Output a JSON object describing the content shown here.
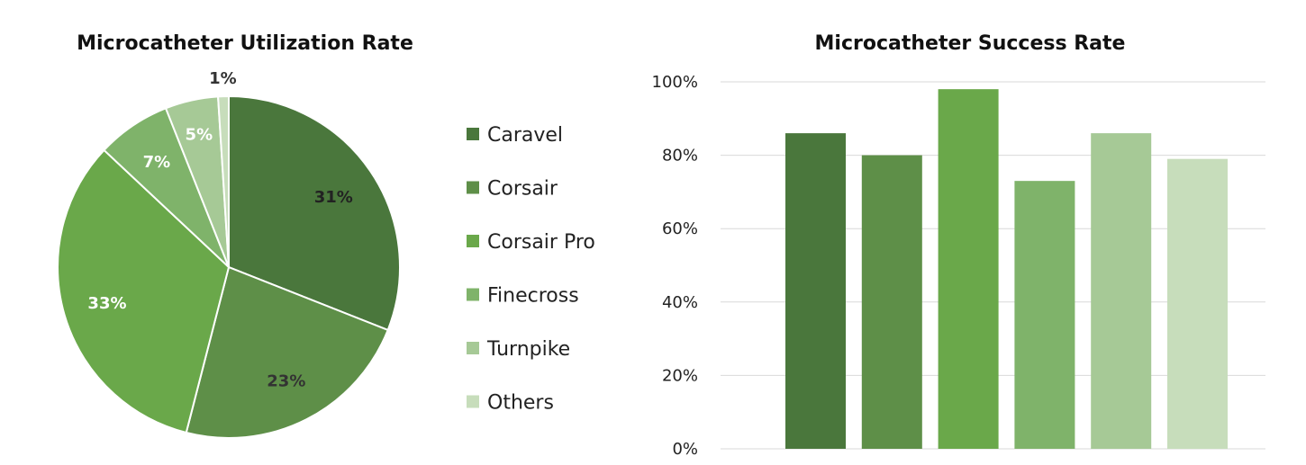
{
  "chart_data": [
    {
      "type": "pie",
      "title": "Microcatheter Utilization Rate",
      "legend_position": "right",
      "slices": [
        {
          "label": "Caravel",
          "value": 31,
          "display": "31%",
          "color": "#4a773c"
        },
        {
          "label": "Corsair",
          "value": 23,
          "display": "23%",
          "color": "#5e8f48"
        },
        {
          "label": "Corsair Pro",
          "value": 33,
          "display": "33%",
          "color": "#6aa84a"
        },
        {
          "label": "Finecross",
          "value": 7,
          "display": "7%",
          "color": "#7fb36a"
        },
        {
          "label": "Turnpike",
          "value": 5,
          "display": "5%",
          "color": "#a6c996"
        },
        {
          "label": "Others",
          "value": 1,
          "display": "1%",
          "color": "#c7ddbb"
        }
      ]
    },
    {
      "type": "bar",
      "title": "Microcatheter Success Rate",
      "categories": [
        "Caravel",
        "Corsair",
        "Corsair Pro",
        "Finecross",
        "Turnpike",
        "Others"
      ],
      "values": [
        86,
        80,
        98,
        73,
        86,
        79
      ],
      "colors": [
        "#4a773c",
        "#5e8f48",
        "#6aa84a",
        "#7fb36a",
        "#a6c996",
        "#c7ddbb"
      ],
      "ylim": [
        0,
        100
      ],
      "yticks": [
        "0%",
        "20%",
        "40%",
        "60%",
        "80%",
        "100%"
      ],
      "grid": true,
      "xlabel": "",
      "ylabel": ""
    }
  ]
}
